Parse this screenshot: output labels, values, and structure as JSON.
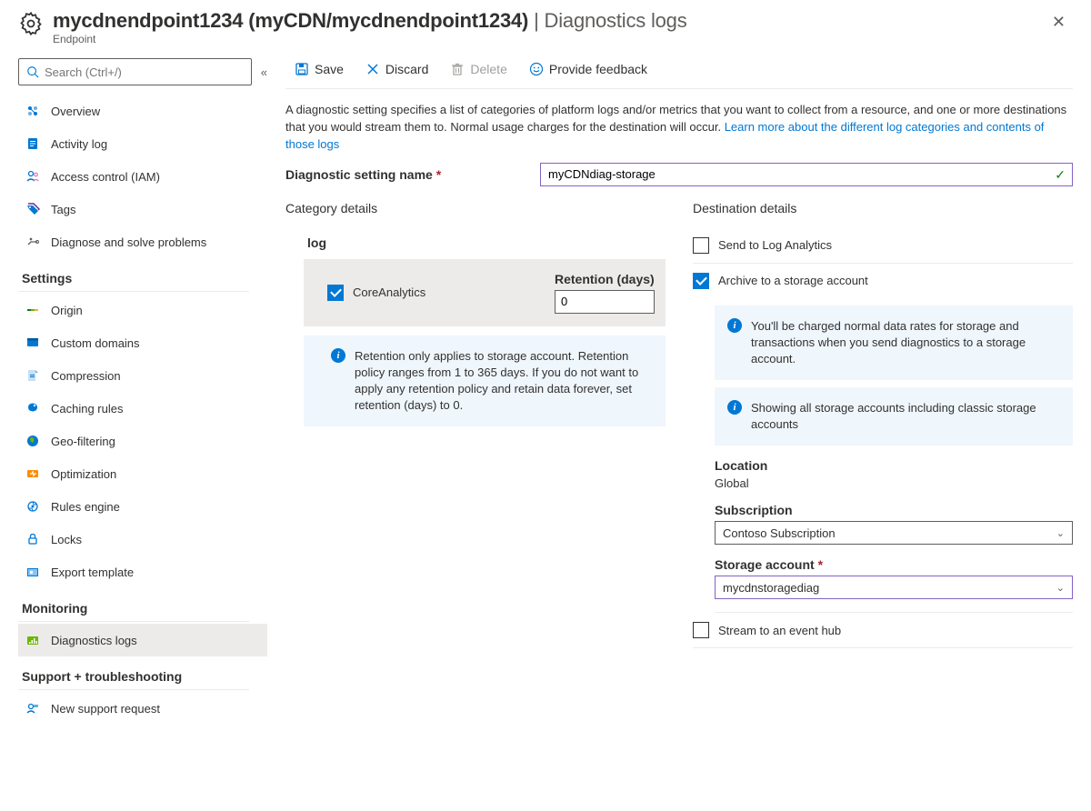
{
  "header": {
    "title_main": "mycdnendpoint1234 (myCDN/mycdnendpoint1234)",
    "title_section": "Diagnostics logs",
    "subtitle": "Endpoint"
  },
  "search": {
    "placeholder": "Search (Ctrl+/)"
  },
  "nav": {
    "top": [
      {
        "label": "Overview",
        "icon": "overview"
      },
      {
        "label": "Activity log",
        "icon": "activity"
      },
      {
        "label": "Access control (IAM)",
        "icon": "iam"
      },
      {
        "label": "Tags",
        "icon": "tags"
      },
      {
        "label": "Diagnose and solve problems",
        "icon": "diagnose"
      }
    ],
    "section_settings": "Settings",
    "settings": [
      {
        "label": "Origin",
        "icon": "origin"
      },
      {
        "label": "Custom domains",
        "icon": "domains"
      },
      {
        "label": "Compression",
        "icon": "compression"
      },
      {
        "label": "Caching rules",
        "icon": "caching"
      },
      {
        "label": "Geo-filtering",
        "icon": "geo"
      },
      {
        "label": "Optimization",
        "icon": "optimization"
      },
      {
        "label": "Rules engine",
        "icon": "rules"
      },
      {
        "label": "Locks",
        "icon": "locks"
      },
      {
        "label": "Export template",
        "icon": "export"
      }
    ],
    "section_monitoring": "Monitoring",
    "monitoring": [
      {
        "label": "Diagnostics logs",
        "icon": "diaglogs",
        "active": true
      }
    ],
    "section_support": "Support + troubleshooting",
    "support": [
      {
        "label": "New support request",
        "icon": "support"
      }
    ]
  },
  "toolbar": {
    "save": "Save",
    "discard": "Discard",
    "delete": "Delete",
    "feedback": "Provide feedback"
  },
  "description": {
    "text": "A diagnostic setting specifies a list of categories of platform logs and/or metrics that you want to collect from a resource, and one or more destinations that you would stream them to. Normal usage charges for the destination will occur. ",
    "link": "Learn more about the different log categories and contents of those logs"
  },
  "form": {
    "name_label": "Diagnostic setting name",
    "name_value": "myCDNdiag-storage"
  },
  "category": {
    "title": "Category details",
    "log_title": "log",
    "item_label": "CoreAnalytics",
    "retention_label": "Retention (days)",
    "retention_value": "0",
    "info": "Retention only applies to storage account. Retention policy ranges from 1 to 365 days. If you do not want to apply any retention policy and retain data forever, set retention (days) to 0."
  },
  "destination": {
    "title": "Destination details",
    "send_la": "Send to Log Analytics",
    "archive": "Archive to a storage account",
    "stream": "Stream to an event hub",
    "info1": "You'll be charged normal data rates for storage and transactions when you send diagnostics to a storage account.",
    "info2": "Showing all storage accounts including classic storage accounts",
    "location_label": "Location",
    "location_value": "Global",
    "subscription_label": "Subscription",
    "subscription_value": "Contoso Subscription",
    "storage_label": "Storage account",
    "storage_value": "mycdnstoragediag"
  },
  "colors": {
    "link": "#0078d4",
    "accent": "#0078d4",
    "purple_border": "#8661c5",
    "info_bg": "#eff6fc",
    "active_bg": "#edebe9"
  }
}
